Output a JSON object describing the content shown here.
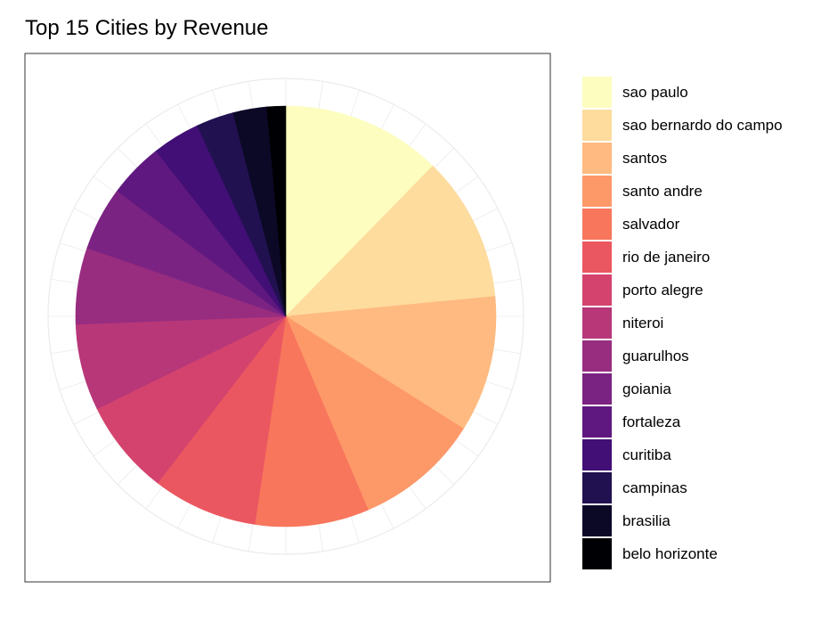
{
  "chart_data": {
    "type": "pie",
    "title": "Top 15 Cities by Revenue",
    "categories": [
      "sao paulo",
      "sao bernardo do campo",
      "santos",
      "santo andre",
      "salvador",
      "rio de janeiro",
      "porto alegre",
      "niteroi",
      "guarulhos",
      "goiania",
      "fortaleza",
      "curitiba",
      "campinas",
      "brasilia",
      "belo horizonte"
    ],
    "values": [
      12.8,
      11.6,
      10.9,
      10.0,
      9.1,
      8.4,
      7.6,
      6.9,
      6.1,
      5.1,
      4.4,
      3.8,
      3.0,
      2.7,
      1.5
    ],
    "colors": [
      "#FCFDBF",
      "#FDDC9E",
      "#FEBA80",
      "#FD9869",
      "#F8765C",
      "#EB5760",
      "#D3436E",
      "#B73779",
      "#982D80",
      "#7B2382",
      "#5F187F",
      "#410F75",
      "#221150",
      "#0C0927",
      "#000004"
    ],
    "legend_position": "right",
    "grid": true
  }
}
